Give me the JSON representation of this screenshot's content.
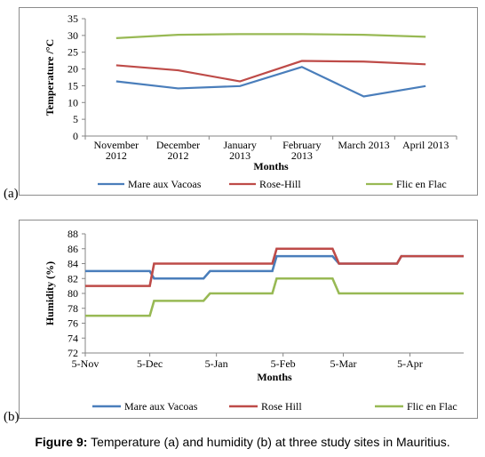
{
  "caption": {
    "label": "Figure 9:",
    "text": " Temperature (a) and humidity (b) at three study sites in Mauritius."
  },
  "chart_data": [
    {
      "type": "line",
      "panel_label": "(a)",
      "title": "",
      "xlabel": "Months",
      "ylabel": "Temperature /°C",
      "ylim": [
        0,
        35
      ],
      "yticks": [
        0,
        5,
        10,
        15,
        20,
        25,
        30,
        35
      ],
      "categories": [
        [
          "November",
          "2012"
        ],
        [
          "December",
          "2012"
        ],
        [
          "January",
          "2013"
        ],
        [
          "February",
          "2013"
        ],
        [
          "March 2013"
        ],
        [
          "April 2013"
        ]
      ],
      "legend_position": "bottom",
      "grid": false,
      "series": [
        {
          "name": "Mare aux Vacoas",
          "color": "#4a7ebb",
          "values": [
            16.3,
            14.2,
            14.9,
            20.6,
            11.8,
            14.9
          ]
        },
        {
          "name": "Rose-Hill",
          "color": "#be4b48",
          "values": [
            21.1,
            19.6,
            16.3,
            22.4,
            22.2,
            21.4
          ]
        },
        {
          "name": "Flic en Flac",
          "color": "#98b954",
          "values": [
            29.2,
            30.2,
            30.4,
            30.4,
            30.2,
            29.6
          ]
        }
      ]
    },
    {
      "type": "line",
      "panel_label": "(b)",
      "title": "",
      "xlabel": "Months",
      "ylabel": "Humidity (%)",
      "ylim": [
        72,
        88
      ],
      "yticks": [
        72,
        74,
        76,
        78,
        80,
        82,
        84,
        86,
        88
      ],
      "x_domain": [
        "2012-11-05",
        "2013-04-30"
      ],
      "xticks": [
        {
          "date": "2012-11-05",
          "label": "5-Nov"
        },
        {
          "date": "2012-12-05",
          "label": "5-Dec"
        },
        {
          "date": "2013-01-05",
          "label": "5-Jan"
        },
        {
          "date": "2013-02-05",
          "label": "5-Feb"
        },
        {
          "date": "2013-03-05",
          "label": "5-Mar"
        },
        {
          "date": "2013-04-05",
          "label": "5-Apr"
        }
      ],
      "legend_position": "bottom",
      "grid": false,
      "series": [
        {
          "name": "Mare aux Vacoas",
          "color": "#4a7ebb",
          "points": [
            [
              "2012-11-05",
              83
            ],
            [
              "2012-12-05",
              83
            ],
            [
              "2012-12-07",
              82
            ],
            [
              "2012-12-30",
              82
            ],
            [
              "2013-01-02",
              83
            ],
            [
              "2013-01-31",
              83
            ],
            [
              "2013-02-02",
              85
            ],
            [
              "2013-02-28",
              85
            ],
            [
              "2013-03-03",
              84
            ],
            [
              "2013-03-30",
              84
            ],
            [
              "2013-04-01",
              85
            ],
            [
              "2013-04-30",
              85
            ]
          ]
        },
        {
          "name": "Rose Hill",
          "color": "#be4b48",
          "points": [
            [
              "2012-11-05",
              81
            ],
            [
              "2012-12-05",
              81
            ],
            [
              "2012-12-07",
              84
            ],
            [
              "2013-01-31",
              84
            ],
            [
              "2013-02-02",
              86
            ],
            [
              "2013-02-28",
              86
            ],
            [
              "2013-03-03",
              84
            ],
            [
              "2013-03-30",
              84
            ],
            [
              "2013-04-01",
              85
            ],
            [
              "2013-04-30",
              85
            ]
          ]
        },
        {
          "name": "Flic en Flac",
          "color": "#98b954",
          "points": [
            [
              "2012-11-05",
              77
            ],
            [
              "2012-12-05",
              77
            ],
            [
              "2012-12-07",
              79
            ],
            [
              "2012-12-30",
              79
            ],
            [
              "2013-01-02",
              80
            ],
            [
              "2013-01-31",
              80
            ],
            [
              "2013-02-02",
              82
            ],
            [
              "2013-02-28",
              82
            ],
            [
              "2013-03-03",
              80
            ],
            [
              "2013-04-30",
              80
            ]
          ]
        }
      ]
    }
  ]
}
